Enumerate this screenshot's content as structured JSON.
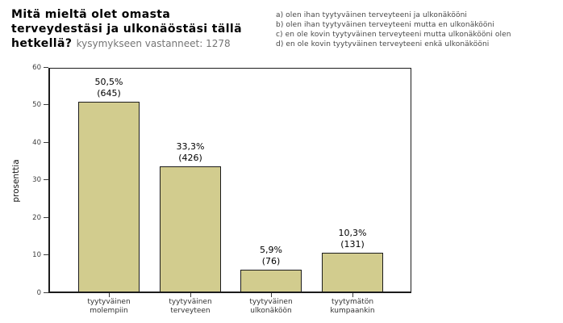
{
  "header": {
    "title_line1": "Mitä mieltä olet omasta",
    "title_line2": "terveydestäsi ja ulkonäöstäsi tällä",
    "title_line3": "hetkellä?",
    "subtitle": "kysymykseen vastanneet: 1278"
  },
  "legend": {
    "items": [
      "a) olen ihan tyytyväinen terveyteeni ja ulkonäkööni",
      "b) olen ihan tyytyväinen terveyteeni mutta en ulkonäkööni",
      "c) en ole kovin tyytyväinen terveyteeni mutta ulkonäkööni olen",
      "d) en ole kovin tyytyväinen terveyteeni enkä ulkonäkööni"
    ]
  },
  "chart_data": {
    "type": "bar",
    "title": "Mitä mieltä olet omasta terveydestäsi ja ulkonäöstäsi tällä hetkellä?",
    "subtitle": "kysymykseen vastanneet: 1278",
    "categories": [
      "tyytyväinen molempiin",
      "tyytyväinen terveyteen",
      "tyytyväinen ulkonäköön",
      "tyytymätön kumpaankin"
    ],
    "values": [
      50.5,
      33.3,
      5.9,
      10.3
    ],
    "counts": [
      645,
      426,
      76,
      131
    ],
    "value_labels": [
      "50,5%",
      "33,3%",
      "5,9%",
      "10,3%"
    ],
    "count_labels": [
      "(645)",
      "(426)",
      "(76)",
      "(131)"
    ],
    "xlabel": "",
    "ylabel": "prosenttia",
    "ylim": [
      0,
      60
    ],
    "yticks": [
      0,
      10,
      20,
      30,
      40,
      50,
      60
    ],
    "grid": false,
    "legend_position": "top-right",
    "bar_color": "#d2cc8e",
    "bar_border_color": "#1c1c1c",
    "total_respondents": 1278
  },
  "colors": {
    "background": "#ffffff",
    "title_text": "#000000",
    "subtitle_text": "#757575",
    "legend_text": "#474747",
    "axis_text": "#3d3d3d",
    "bar_fill": "#d2cc8e"
  }
}
